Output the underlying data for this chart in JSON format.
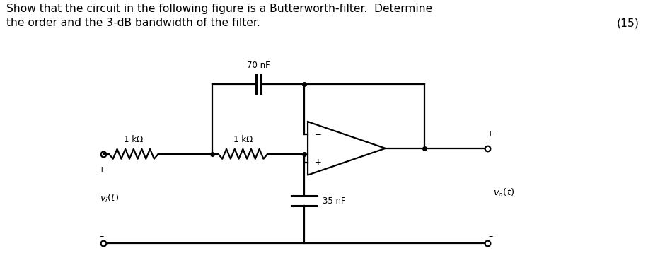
{
  "title_line1": "Show that the circuit in the following figure is a Butterworth-filter.  Determine",
  "title_line2": "the order and the 3-dB bandwidth of the filter.",
  "marks": "(15)",
  "bg_color": "#ffffff",
  "label_70nF": "70 nF",
  "label_1kohm_1": "1 kΩ",
  "label_1kohm_2": "1 kΩ",
  "label_35nF": "35 nF",
  "label_vi": "$v_i(t)$",
  "label_vo": "$v_o(t)$",
  "label_plus_in": "+",
  "label_minus_in": "–",
  "label_plus_out": "+",
  "label_minus_out": "–"
}
